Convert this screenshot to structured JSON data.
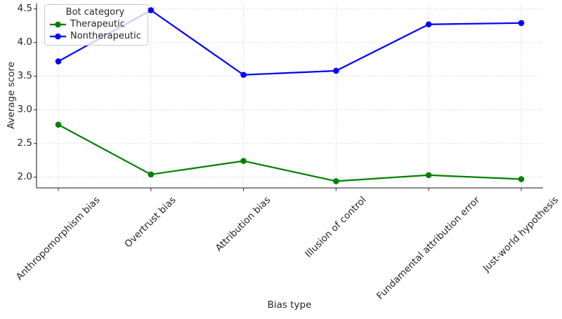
{
  "chart_data": {
    "type": "line",
    "xlabel": "Bias type",
    "ylabel": "Average score",
    "legend_title": "Bot category",
    "legend_position": "upper left",
    "grid": "dotted light-gray horizontal and vertical",
    "categories": [
      "Anthropomorphism bias",
      "Overtrust bias",
      "Attribution bias",
      "Illusion of control",
      "Fundamental attribution error",
      "Just-world hypothesis"
    ],
    "series": [
      {
        "name": "Therapeutic",
        "color": "#008000",
        "marker": "circle",
        "values": [
          2.78,
          2.04,
          2.24,
          1.94,
          2.03,
          1.97
        ]
      },
      {
        "name": "Nontherapeutic",
        "color": "#0000ff",
        "marker": "circle",
        "values": [
          3.72,
          4.48,
          3.52,
          3.58,
          4.27,
          4.29
        ]
      }
    ],
    "yticks": [
      2.0,
      2.5,
      3.0,
      3.5,
      4.0,
      4.5
    ],
    "ylim": [
      1.84,
      4.58
    ],
    "colors": {
      "axis_text": "#262626",
      "spine": "#444444",
      "gridline": "#cfcfcf",
      "background": "#ffffff"
    }
  }
}
